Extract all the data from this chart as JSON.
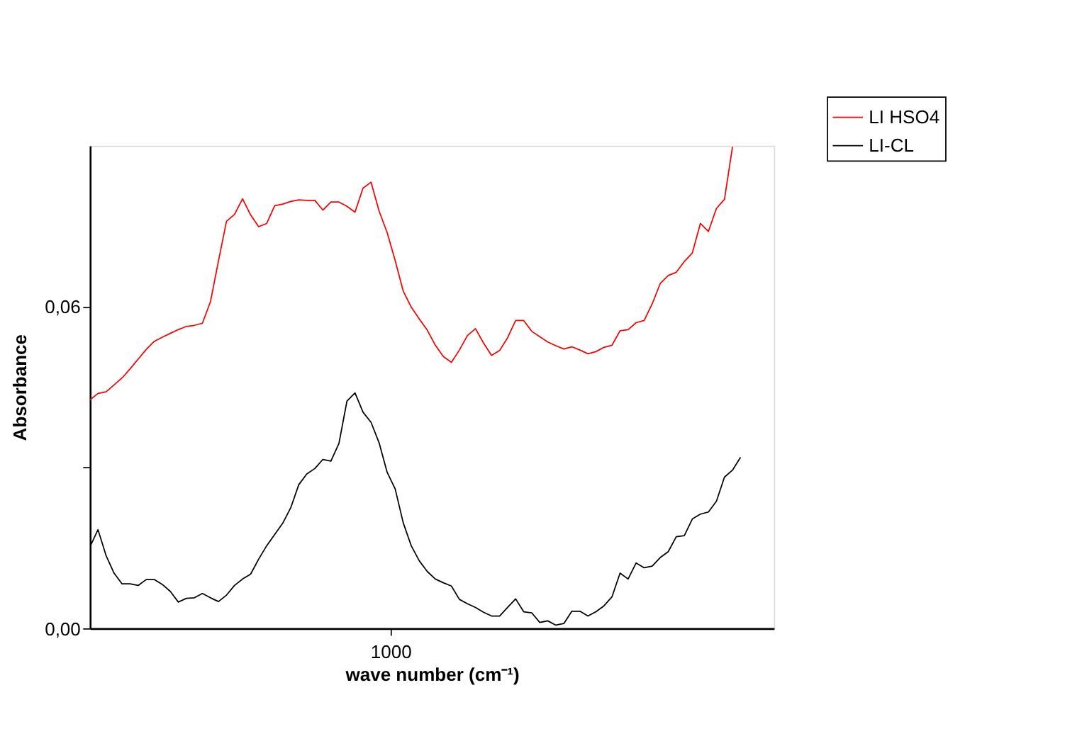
{
  "chart_data": {
    "type": "line",
    "xlabel": "wave number (cm⁻¹)",
    "ylabel": "Absorbance",
    "categories": [
      null,
      null,
      null,
      null,
      null,
      null,
      null,
      null,
      null,
      null,
      null,
      null,
      null,
      null,
      null,
      null,
      null,
      null,
      null,
      null,
      null,
      null,
      null,
      null,
      null,
      null,
      null,
      null,
      null,
      null,
      null,
      null,
      null,
      null,
      null,
      null,
      null,
      null,
      null,
      null,
      null,
      null,
      null,
      null,
      null,
      null,
      null,
      null,
      null,
      null,
      null,
      null,
      null,
      null,
      null,
      null,
      null,
      null,
      null,
      null,
      null,
      null,
      null,
      null,
      null,
      null,
      null,
      null,
      null,
      null,
      null,
      null,
      null,
      null,
      null,
      null,
      null,
      null,
      null,
      null,
      null,
      null
    ],
    "ylim": [
      0,
      0.09
    ],
    "yticks": [
      {
        "value": 0,
        "label": "0,00"
      },
      {
        "value": 0.03,
        "label": null
      },
      {
        "value": 0.06,
        "label": "0,06"
      }
    ],
    "annotations": [
      "1000"
    ],
    "grid": false,
    "legend": "top right",
    "marker": "none",
    "line_style": "solid",
    "series": [
      {
        "name": "LI HSO4",
        "color": "#ff0000",
        "values": [
          0.0426,
          0.0438,
          0.0441,
          0.0454,
          0.0467,
          0.0484,
          0.0502,
          0.052,
          0.0535,
          0.0543,
          0.055,
          0.0557,
          0.0563,
          0.0565,
          0.0569,
          0.0609,
          0.0685,
          0.0759,
          0.0772,
          0.0801,
          0.0771,
          0.0749,
          0.0755,
          0.0788,
          0.0791,
          0.0796,
          0.0799,
          0.0798,
          0.0798,
          0.078,
          0.0795,
          0.0795,
          0.0787,
          0.0776,
          0.0821,
          0.0832,
          0.0778,
          0.0738,
          0.0686,
          0.0629,
          0.0599,
          0.0577,
          0.0556,
          0.0528,
          0.0507,
          0.0496,
          0.0519,
          0.0546,
          0.0559,
          0.0532,
          0.0509,
          0.0518,
          0.0542,
          0.0574,
          0.0574,
          0.0554,
          0.0544,
          0.0534,
          0.0527,
          0.0521,
          0.0525,
          0.0519,
          0.0512,
          0.0516,
          0.0524,
          0.0528,
          0.0555,
          0.0557,
          0.057,
          0.0574,
          0.0605,
          0.0643,
          0.0658,
          0.0664,
          0.0684,
          0.07,
          0.0755,
          0.074,
          0.0783,
          0.08,
          0.0898,
          null
        ]
      },
      {
        "name": "LI-CL",
        "color": "#000000",
        "values": [
          0.0152,
          0.0184,
          0.0136,
          0.0103,
          0.0083,
          0.0083,
          0.008,
          0.0091,
          0.0091,
          0.0082,
          0.0069,
          0.0049,
          0.0056,
          0.0057,
          0.0065,
          0.0057,
          0.005,
          0.0062,
          0.008,
          0.0092,
          0.0101,
          0.0129,
          0.0154,
          0.0175,
          0.0196,
          0.0225,
          0.0268,
          0.0288,
          0.0298,
          0.0315,
          0.0312,
          0.0345,
          0.0424,
          0.0439,
          0.0403,
          0.0384,
          0.0346,
          0.0291,
          0.026,
          0.0197,
          0.0154,
          0.0126,
          0.0106,
          0.0092,
          0.0085,
          0.0079,
          0.0054,
          0.0046,
          0.0039,
          0.003,
          0.0023,
          0.0023,
          0.0039,
          0.0055,
          0.0031,
          0.0029,
          0.0011,
          0.0014,
          0.0006,
          0.0009,
          0.0032,
          0.0032,
          0.0023,
          0.0031,
          0.0042,
          0.0059,
          0.0103,
          0.0092,
          0.0122,
          0.0113,
          0.0116,
          0.0132,
          0.0143,
          0.0171,
          0.0173,
          0.0204,
          0.0213,
          0.0217,
          0.0237,
          0.0282,
          0.0295,
          0.0319
        ]
      }
    ]
  }
}
